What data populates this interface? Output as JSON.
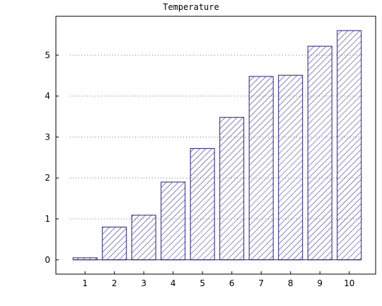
{
  "chart_data": {
    "type": "bar",
    "title": "Temperature",
    "categories": [
      "1",
      "2",
      "3",
      "4",
      "5",
      "6",
      "7",
      "8",
      "9",
      "10"
    ],
    "values": [
      0.05,
      0.8,
      1.09,
      1.9,
      2.72,
      3.48,
      4.48,
      4.51,
      5.22,
      5.6
    ],
    "xlabel": "",
    "ylabel": "",
    "ylim": [
      -0.35,
      5.95
    ],
    "yticks": [
      "0",
      "1",
      "2",
      "3",
      "4",
      "5"
    ],
    "grid": "horizontal dotted",
    "legend": "none",
    "bar_fill": "diagonal hatch",
    "colors": {
      "bar": "#1f1f8f",
      "frame": "#000000",
      "grid": "#7a7a7a"
    }
  }
}
